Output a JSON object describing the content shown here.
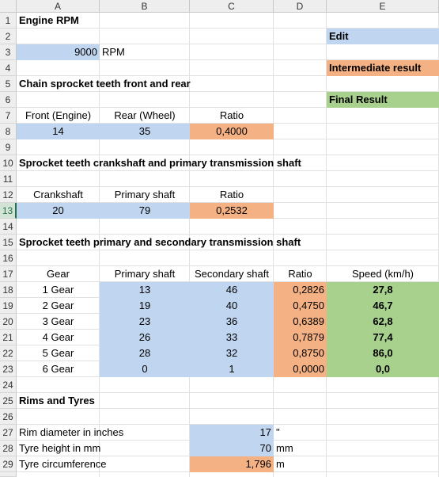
{
  "columns": [
    "A",
    "B",
    "C",
    "D",
    "E"
  ],
  "rows": [
    "1",
    "2",
    "3",
    "4",
    "5",
    "6",
    "7",
    "8",
    "9",
    "10",
    "11",
    "12",
    "13",
    "14",
    "15",
    "16",
    "17",
    "18",
    "19",
    "20",
    "21",
    "22",
    "23",
    "24",
    "25",
    "26",
    "27",
    "28",
    "29"
  ],
  "colors": {
    "edit": "#c0d5ef",
    "intermediate": "#f4b183",
    "final": "#a9d18e"
  },
  "legend": {
    "edit": "Edit",
    "intermediate": "Intermediate result",
    "final": "Final Result"
  },
  "engine": {
    "title": "Engine RPM",
    "rpm": "9000",
    "unit": "RPM"
  },
  "chain": {
    "title": "Chain sprocket teeth front and rear",
    "h_front": "Front (Engine)",
    "h_rear": "Rear (Wheel)",
    "h_ratio": "Ratio",
    "front": "14",
    "rear": "35",
    "ratio": "0,4000"
  },
  "crank": {
    "title": "Sprocket teeth crankshaft and primary transmission shaft",
    "h_crank": "Crankshaft",
    "h_primary": "Primary shaft",
    "h_ratio": "Ratio",
    "crank": "20",
    "primary": "79",
    "ratio": "0,2532"
  },
  "gears": {
    "title": "Sprocket teeth primary and secondary transmission shaft",
    "h_gear": "Gear",
    "h_primary": "Primary shaft",
    "h_secondary": "Secondary shaft",
    "h_ratio": "Ratio",
    "h_speed": "Speed (km/h)",
    "rows": [
      {
        "gear": "1 Gear",
        "primary": "13",
        "secondary": "46",
        "ratio": "0,2826",
        "speed": "27,8"
      },
      {
        "gear": "2 Gear",
        "primary": "19",
        "secondary": "40",
        "ratio": "0,4750",
        "speed": "46,7"
      },
      {
        "gear": "3 Gear",
        "primary": "23",
        "secondary": "36",
        "ratio": "0,6389",
        "speed": "62,8"
      },
      {
        "gear": "4 Gear",
        "primary": "26",
        "secondary": "33",
        "ratio": "0,7879",
        "speed": "77,4"
      },
      {
        "gear": "5 Gear",
        "primary": "28",
        "secondary": "32",
        "ratio": "0,8750",
        "speed": "86,0"
      },
      {
        "gear": "6 Gear",
        "primary": "0",
        "secondary": "1",
        "ratio": "0,0000",
        "speed": "0,0"
      }
    ]
  },
  "rims": {
    "title": "Rims and Tyres",
    "diam_label": "Rim diameter in inches",
    "diam": "17",
    "diam_unit": "\"",
    "height_label": "Tyre height in mm",
    "height": "70",
    "height_unit": "mm",
    "circ_label": "Tyre circumference",
    "circ": "1,796",
    "circ_unit": "m"
  },
  "selected_row": "13"
}
